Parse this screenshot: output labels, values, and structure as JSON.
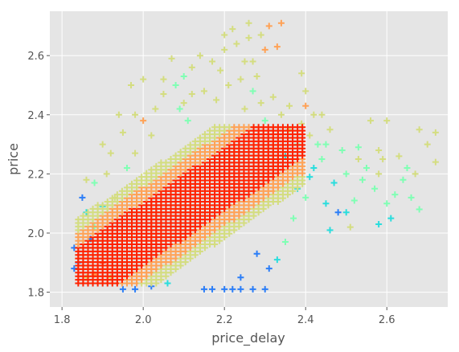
{
  "chart_data": {
    "type": "scatter",
    "marker": "+",
    "title": "",
    "xlabel": "price_delay",
    "ylabel": "price",
    "xlim": [
      1.77,
      2.75
    ],
    "ylim": [
      1.75,
      2.75
    ],
    "xticks": [
      "1.8",
      "2.0",
      "2.2",
      "2.4",
      "2.6"
    ],
    "yticks": [
      "1.8",
      "2.0",
      "2.2",
      "2.4",
      "2.6"
    ],
    "grid": true,
    "legend": "none",
    "colormap": "rainbow",
    "background": "#E5E5E5",
    "grid_color": "#FFFFFF",
    "color_scale": [
      "#8000FF",
      "#2C7EF7",
      "#2ADDDD",
      "#80FFB4",
      "#D4DD80",
      "#FFA256",
      "#FF2200"
    ],
    "points": [
      [
        1.83,
        1.95,
        1
      ],
      [
        1.84,
        1.9,
        1
      ],
      [
        1.83,
        1.88,
        1
      ],
      [
        1.85,
        2.12,
        1
      ],
      [
        1.86,
        2.07,
        2
      ],
      [
        1.87,
        1.98,
        1
      ],
      [
        1.88,
        2.02,
        3
      ],
      [
        1.86,
        1.85,
        4
      ],
      [
        1.9,
        1.9,
        6
      ],
      [
        1.88,
        1.86,
        5
      ],
      [
        1.92,
        1.85,
        4
      ],
      [
        1.95,
        1.81,
        1
      ],
      [
        1.98,
        1.81,
        1
      ],
      [
        2.02,
        1.82,
        1
      ],
      [
        2.06,
        1.83,
        2
      ],
      [
        2.17,
        1.81,
        1
      ],
      [
        2.2,
        1.81,
        1
      ],
      [
        2.22,
        1.81,
        1
      ],
      [
        2.24,
        1.81,
        1
      ],
      [
        2.27,
        1.81,
        1
      ],
      [
        2.3,
        1.81,
        1
      ],
      [
        2.24,
        1.85,
        1
      ],
      [
        2.15,
        1.81,
        1
      ],
      [
        2.28,
        1.93,
        1
      ],
      [
        2.31,
        1.88,
        1
      ],
      [
        2.33,
        1.91,
        2
      ],
      [
        2.35,
        1.97,
        3
      ],
      [
        2.37,
        2.05,
        3
      ],
      [
        2.38,
        2.15,
        2
      ],
      [
        2.4,
        2.12,
        3
      ],
      [
        2.41,
        2.19,
        2
      ],
      [
        2.42,
        2.22,
        2
      ],
      [
        2.44,
        2.25,
        3
      ],
      [
        2.45,
        2.1,
        2
      ],
      [
        2.47,
        2.17,
        2
      ],
      [
        2.48,
        2.07,
        1
      ],
      [
        2.43,
        2.3,
        3
      ],
      [
        2.46,
        2.35,
        4
      ],
      [
        2.49,
        2.28,
        3
      ],
      [
        2.5,
        2.2,
        3
      ],
      [
        2.51,
        2.02,
        4
      ],
      [
        2.52,
        2.11,
        3
      ],
      [
        2.53,
        2.25,
        4
      ],
      [
        2.55,
        2.22,
        3
      ],
      [
        2.57,
        2.15,
        3
      ],
      [
        2.58,
        2.2,
        4
      ],
      [
        2.59,
        2.25,
        4
      ],
      [
        2.6,
        2.1,
        3
      ],
      [
        2.61,
        2.05,
        2
      ],
      [
        2.62,
        2.13,
        3
      ],
      [
        2.63,
        2.26,
        4
      ],
      [
        2.64,
        2.18,
        3
      ],
      [
        2.65,
        2.22,
        3
      ],
      [
        2.66,
        2.12,
        3
      ],
      [
        2.67,
        2.2,
        4
      ],
      [
        2.68,
        2.08,
        3
      ],
      [
        2.7,
        2.3,
        4
      ],
      [
        2.72,
        2.34,
        4
      ],
      [
        2.72,
        2.24,
        4
      ],
      [
        2.68,
        2.35,
        4
      ],
      [
        2.56,
        2.38,
        4
      ],
      [
        2.53,
        2.29,
        3
      ],
      [
        2.46,
        2.01,
        2
      ],
      [
        2.5,
        2.07,
        2
      ],
      [
        2.58,
        2.03,
        2
      ],
      [
        2.6,
        2.38,
        4
      ],
      [
        2.58,
        2.28,
        4
      ],
      [
        2.54,
        2.18,
        3
      ],
      [
        2.35,
        2.26,
        2
      ],
      [
        2.38,
        2.3,
        3
      ],
      [
        2.36,
        2.35,
        4
      ],
      [
        2.39,
        2.37,
        4
      ],
      [
        2.41,
        2.33,
        4
      ],
      [
        2.4,
        2.43,
        5
      ],
      [
        2.39,
        2.54,
        4
      ],
      [
        1.9,
        2.3,
        4
      ],
      [
        1.95,
        2.34,
        4
      ],
      [
        2.0,
        2.38,
        5
      ],
      [
        2.03,
        2.42,
        4
      ],
      [
        2.05,
        2.47,
        4
      ],
      [
        2.08,
        2.5,
        3
      ],
      [
        2.1,
        2.53,
        3
      ],
      [
        2.12,
        2.56,
        4
      ],
      [
        2.14,
        2.6,
        4
      ],
      [
        2.17,
        2.58,
        4
      ],
      [
        2.2,
        2.62,
        4
      ],
      [
        2.23,
        2.64,
        4
      ],
      [
        2.26,
        2.66,
        4
      ],
      [
        2.29,
        2.67,
        4
      ],
      [
        2.31,
        2.7,
        5
      ],
      [
        2.34,
        2.71,
        5
      ],
      [
        2.26,
        2.71,
        4
      ],
      [
        2.22,
        2.69,
        4
      ],
      [
        2.2,
        2.67,
        4
      ],
      [
        2.27,
        2.58,
        4
      ],
      [
        2.3,
        2.62,
        5
      ],
      [
        2.33,
        2.63,
        5
      ],
      [
        2.07,
        2.59,
        4
      ],
      [
        2.05,
        2.52,
        4
      ],
      [
        2.0,
        2.52,
        4
      ],
      [
        1.97,
        2.5,
        4
      ],
      [
        1.98,
        2.4,
        4
      ],
      [
        1.94,
        2.4,
        4
      ],
      [
        1.92,
        2.27,
        4
      ],
      [
        1.98,
        2.27,
        4
      ],
      [
        1.96,
        2.22,
        3
      ],
      [
        2.1,
        2.44,
        4
      ],
      [
        2.12,
        2.47,
        4
      ],
      [
        2.15,
        2.48,
        4
      ],
      [
        2.18,
        2.45,
        4
      ],
      [
        2.21,
        2.5,
        4
      ],
      [
        2.24,
        2.52,
        4
      ],
      [
        2.27,
        2.48,
        3
      ],
      [
        2.29,
        2.44,
        4
      ],
      [
        2.32,
        2.46,
        4
      ],
      [
        2.34,
        2.4,
        4
      ],
      [
        2.3,
        2.38,
        3
      ],
      [
        2.25,
        2.42,
        4
      ],
      [
        2.19,
        2.55,
        4
      ],
      [
        2.25,
        2.58,
        4
      ],
      [
        2.28,
        2.53,
        4
      ],
      [
        2.11,
        2.38,
        3
      ],
      [
        2.09,
        2.42,
        3
      ],
      [
        2.02,
        2.33,
        4
      ],
      [
        1.9,
        2.09,
        2
      ],
      [
        1.88,
        2.17,
        3
      ],
      [
        1.86,
        2.18,
        4
      ],
      [
        1.93,
        2.12,
        4
      ],
      [
        1.91,
        2.2,
        4
      ],
      [
        2.4,
        2.48,
        4
      ],
      [
        2.42,
        2.4,
        4
      ],
      [
        2.45,
        2.3,
        3
      ],
      [
        2.44,
        2.4,
        4
      ],
      [
        2.36,
        2.43,
        4
      ]
    ],
    "core_cluster": {
      "x_range": [
        1.84,
        2.4
      ],
      "y_range": [
        1.83,
        2.36
      ],
      "center_line": [
        [
          1.84,
          1.85
        ],
        [
          2.38,
          2.35
        ]
      ],
      "half_width": 0.2
    }
  }
}
